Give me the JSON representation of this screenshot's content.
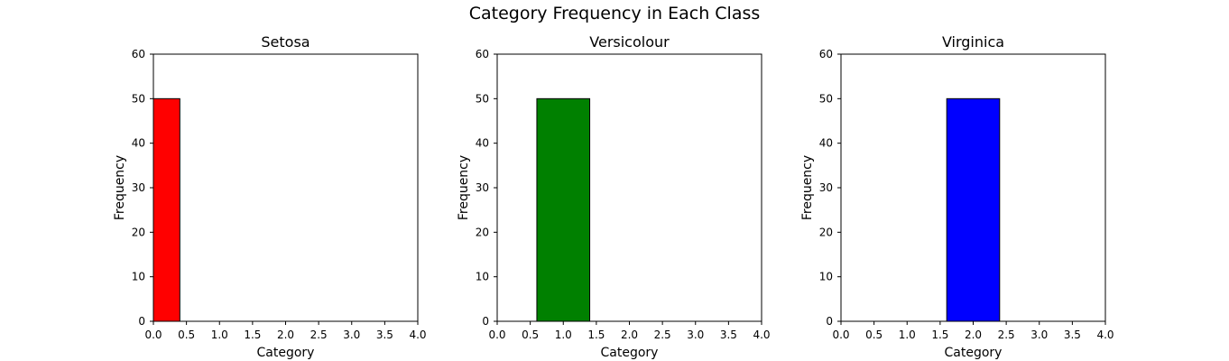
{
  "figure": {
    "title": "Category Frequency in Each Class"
  },
  "chart_data": [
    {
      "type": "bar",
      "title": "Setosa",
      "xlabel": "Category",
      "ylabel": "Frequency",
      "xlim": [
        0,
        4
      ],
      "ylim": [
        0,
        60
      ],
      "xticks": [
        "0.0",
        "0.5",
        "1.0",
        "1.5",
        "2.0",
        "2.5",
        "3.0",
        "3.5",
        "4.0"
      ],
      "yticks": [
        "0",
        "10",
        "20",
        "30",
        "40",
        "50",
        "60"
      ],
      "grid": false,
      "bars": [
        {
          "x0": 0.0,
          "x1": 0.4,
          "value": 50
        }
      ],
      "color": "#ff0000"
    },
    {
      "type": "bar",
      "title": "Versicolour",
      "xlabel": "Category",
      "ylabel": "Frequency",
      "xlim": [
        0,
        4
      ],
      "ylim": [
        0,
        60
      ],
      "xticks": [
        "0.0",
        "0.5",
        "1.0",
        "1.5",
        "2.0",
        "2.5",
        "3.0",
        "3.5",
        "4.0"
      ],
      "yticks": [
        "0",
        "10",
        "20",
        "30",
        "40",
        "50",
        "60"
      ],
      "grid": false,
      "bars": [
        {
          "x0": 0.6,
          "x1": 1.4,
          "value": 50
        }
      ],
      "color": "#008000"
    },
    {
      "type": "bar",
      "title": "Virginica",
      "xlabel": "Category",
      "ylabel": "Frequency",
      "xlim": [
        0,
        4
      ],
      "ylim": [
        0,
        60
      ],
      "xticks": [
        "0.0",
        "0.5",
        "1.0",
        "1.5",
        "2.0",
        "2.5",
        "3.0",
        "3.5",
        "4.0"
      ],
      "yticks": [
        "0",
        "10",
        "20",
        "30",
        "40",
        "50",
        "60"
      ],
      "grid": false,
      "bars": [
        {
          "x0": 1.6,
          "x1": 2.4,
          "value": 50
        }
      ],
      "color": "#0000ff"
    }
  ]
}
